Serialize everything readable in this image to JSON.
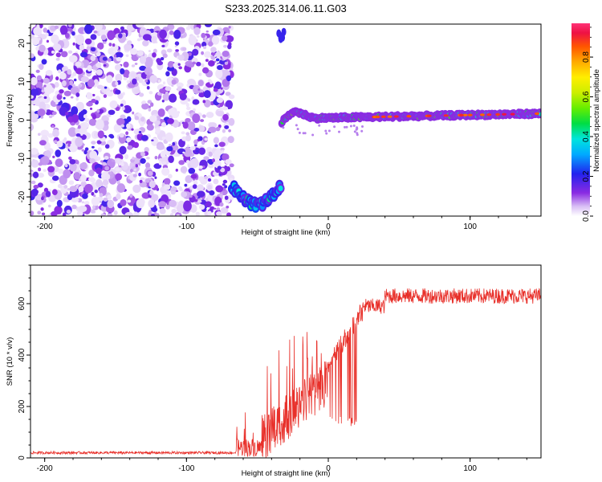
{
  "title": "S233.2025.314.06.11.G03",
  "chart_data": [
    {
      "type": "heatmap",
      "xlabel": "Height of straight line (km)",
      "ylabel": "Frequency (Hz)",
      "xlim": [
        -210,
        150
      ],
      "ylim": [
        -25,
        25
      ],
      "xticks": [
        -200,
        -100,
        0,
        100
      ],
      "yticks": [
        -20,
        -10,
        0,
        10,
        20
      ],
      "colorbar": {
        "label": "Normalized spectral amplitude",
        "range": [
          0,
          0.97
        ],
        "ticks": [
          0.0,
          0.2,
          0.4,
          0.6,
          0.8
        ],
        "tick_labels": [
          "0.0",
          "0.2",
          "0.4",
          "0.6",
          "0.8"
        ]
      },
      "regions": [
        {
          "name": "noise",
          "x": [
            -210,
            -68
          ],
          "y": [
            -25,
            25
          ],
          "amplitude": [
            0.02,
            0.2
          ]
        },
        {
          "name": "low-tone",
          "x": [
            -68,
            -33
          ],
          "y": [
            -24,
            -16
          ],
          "amplitude": [
            0.15,
            0.45
          ]
        },
        {
          "name": "upper-blob",
          "x": [
            -35,
            -31
          ],
          "y": [
            21,
            23
          ],
          "amplitude": [
            0.1,
            0.2
          ]
        },
        {
          "name": "carrier",
          "x": [
            -33,
            150
          ],
          "y": [
            -1,
            3
          ],
          "amplitude": [
            0.2,
            0.95
          ]
        }
      ]
    },
    {
      "type": "line",
      "xlabel": "Height of straight line (km)",
      "ylabel": "SNR (10 * v/v)",
      "xlim": [
        -210,
        150
      ],
      "ylim": [
        0,
        750
      ],
      "xticks": [
        -200,
        -100,
        0,
        100
      ],
      "yticks": [
        0,
        200,
        400,
        600
      ],
      "color": "#e8302a",
      "segments": [
        {
          "x": [
            -210,
            -65
          ],
          "base": 20,
          "noise": 10
        },
        {
          "x": [
            -65,
            -45
          ],
          "base": 40,
          "noise": 70,
          "spikes_to": 180
        },
        {
          "x": [
            -45,
            0
          ],
          "base": 120,
          "noise": 100,
          "spikes_to": 510
        },
        {
          "x": [
            0,
            25
          ],
          "base": 380,
          "noise": 80,
          "spikes_to": 600,
          "dips_to": 120
        },
        {
          "x": [
            25,
            40
          ],
          "base": 590,
          "noise": 60
        },
        {
          "x": [
            40,
            150
          ],
          "base": 630,
          "noise": 60
        }
      ]
    }
  ]
}
